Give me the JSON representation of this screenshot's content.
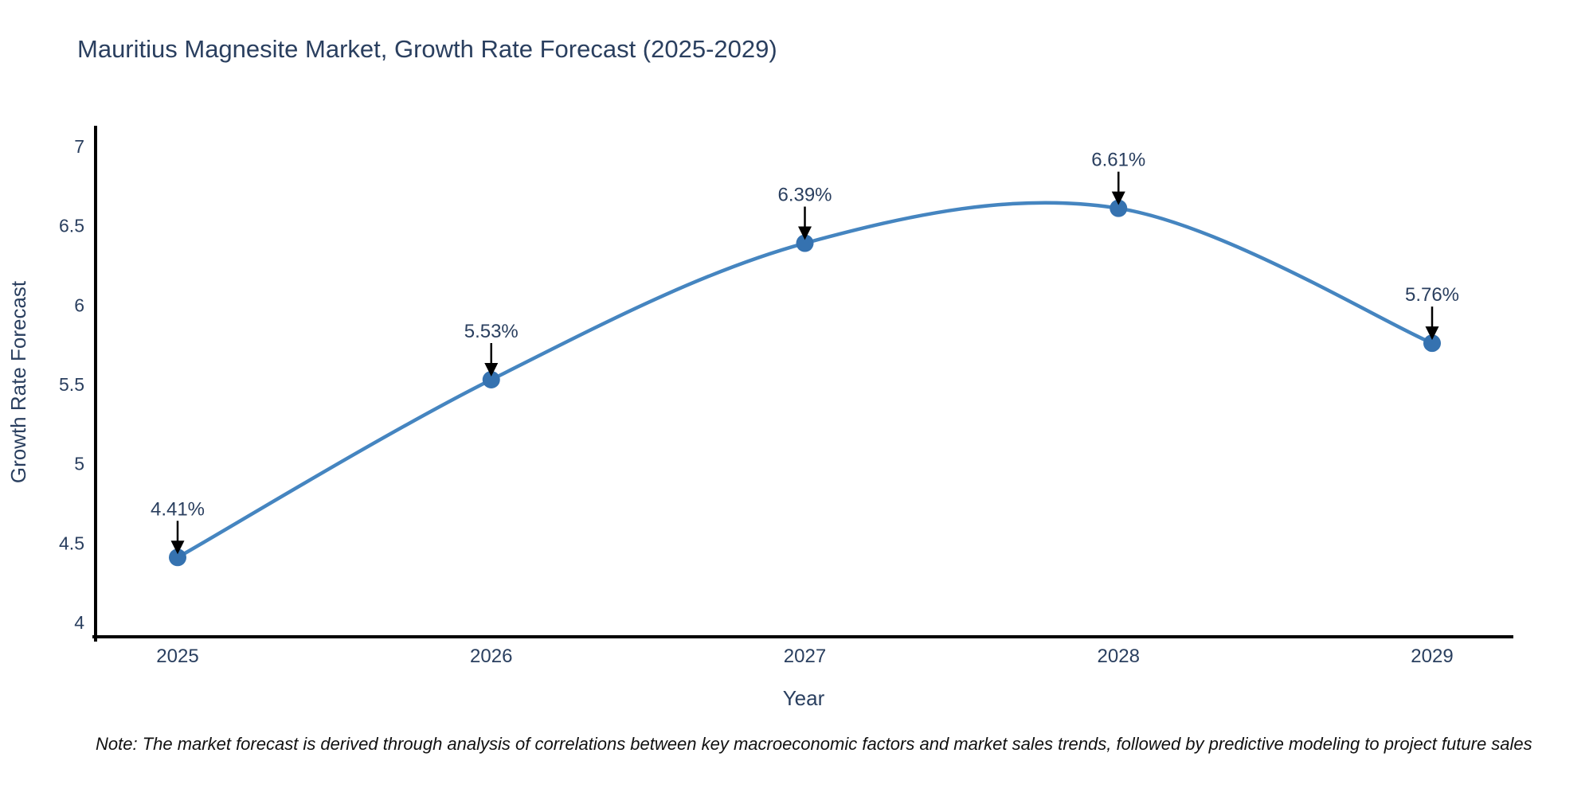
{
  "chart_data": {
    "type": "line",
    "title": "Mauritius Magnesite Market, Growth Rate Forecast (2025-2029)",
    "xlabel": "Year",
    "ylabel": "Growth Rate Forecast",
    "x": [
      "2025",
      "2026",
      "2027",
      "2028",
      "2029"
    ],
    "series": [
      {
        "name": "Growth Rate Forecast",
        "values": [
          4.41,
          5.53,
          6.39,
          6.61,
          5.76
        ],
        "point_labels": [
          "4.41%",
          "5.53%",
          "6.39%",
          "6.61%",
          "5.76%"
        ]
      }
    ],
    "y_ticks": [
      4,
      4.5,
      5,
      5.5,
      6,
      6.5,
      7
    ],
    "ylim": [
      3.91,
      7.12
    ],
    "grid": false,
    "legend_position": "none",
    "curve": "spline",
    "colors": {
      "line": "#4585c0",
      "marker": "#3572b0",
      "axis": "#000000",
      "text": "#2a3f5f",
      "annotation_arrow": "#000000",
      "note_text": "#111111",
      "background": "#ffffff"
    }
  },
  "note": {
    "text": "Note: The market forecast is derived through analysis of correlations between key macroeconomic factors and market sales trends, followed by predictive modeling to project future sales"
  }
}
